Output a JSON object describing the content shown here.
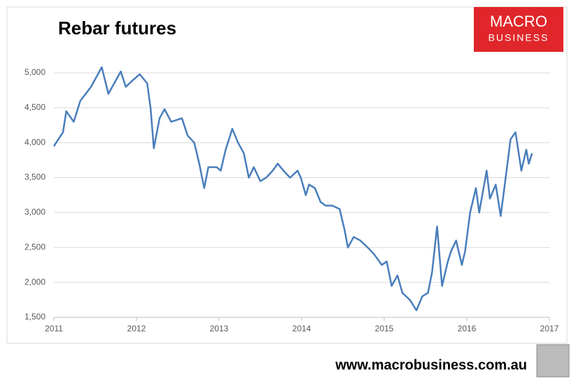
{
  "chart_data": {
    "type": "line",
    "title": "Rebar futures",
    "logo_top": "MACRO",
    "logo_bottom": "BUSINESS",
    "source": "www.macrobusiness.com.au",
    "color": "#4a7ebb",
    "grid": true,
    "xlim": [
      2011,
      2017
    ],
    "xticks": [
      2011,
      2012,
      2013,
      2014,
      2015,
      2016,
      2017
    ],
    "ylim": [
      1500,
      5000
    ],
    "yticks": [
      {
        "value": 1500,
        "label": "1,500"
      },
      {
        "value": 2000,
        "label": "2,000"
      },
      {
        "value": 2500,
        "label": "2,500"
      },
      {
        "value": 3000,
        "label": "3,000"
      },
      {
        "value": 3500,
        "label": "3,500"
      },
      {
        "value": 4000,
        "label": "4,000"
      },
      {
        "value": 4500,
        "label": "4,500"
      },
      {
        "value": 5000,
        "label": "5,000"
      }
    ],
    "x": [
      2011.0,
      2011.11,
      2011.15,
      2011.24,
      2011.32,
      2011.45,
      2011.58,
      2011.66,
      2011.81,
      2011.87,
      2011.96,
      2012.04,
      2012.13,
      2012.17,
      2012.21,
      2012.28,
      2012.34,
      2012.42,
      2012.55,
      2012.62,
      2012.7,
      2012.76,
      2012.82,
      2012.87,
      2012.97,
      2013.02,
      2013.08,
      2013.16,
      2013.23,
      2013.3,
      2013.36,
      2013.42,
      2013.5,
      2013.57,
      2013.65,
      2013.71,
      2013.78,
      2013.86,
      2013.95,
      2013.99,
      2014.05,
      2014.09,
      2014.16,
      2014.23,
      2014.29,
      2014.37,
      2014.46,
      2014.52,
      2014.56,
      2014.63,
      2014.71,
      2014.8,
      2014.88,
      2014.97,
      2015.03,
      2015.09,
      2015.16,
      2015.22,
      2015.31,
      2015.39,
      2015.46,
      2015.53,
      2015.58,
      2015.64,
      2015.7,
      2015.77,
      2015.81,
      2015.87,
      2015.94,
      2015.98,
      2016.04,
      2016.11,
      2016.15,
      2016.24,
      2016.28,
      2016.35,
      2016.41,
      2016.47,
      2016.53,
      2016.59,
      2016.66,
      2016.72,
      2016.75,
      2016.79
    ],
    "values": [
      3950,
      4150,
      4450,
      4300,
      4600,
      4800,
      5080,
      4700,
      5020,
      4800,
      4900,
      4980,
      4850,
      4500,
      3920,
      4350,
      4480,
      4300,
      4350,
      4100,
      4000,
      3700,
      3350,
      3650,
      3650,
      3600,
      3900,
      4200,
      4000,
      3850,
      3500,
      3650,
      3450,
      3500,
      3600,
      3700,
      3600,
      3500,
      3600,
      3500,
      3250,
      3400,
      3350,
      3150,
      3100,
      3100,
      3050,
      2750,
      2500,
      2650,
      2600,
      2500,
      2400,
      2250,
      2300,
      1950,
      2100,
      1850,
      1750,
      1600,
      1800,
      1850,
      2150,
      2800,
      1950,
      2300,
      2450,
      2600,
      2250,
      2450,
      3000,
      3350,
      3000,
      3600,
      3200,
      3400,
      2950,
      3500,
      4050,
      4150,
      3600,
      3900,
      3700,
      3850
    ]
  }
}
